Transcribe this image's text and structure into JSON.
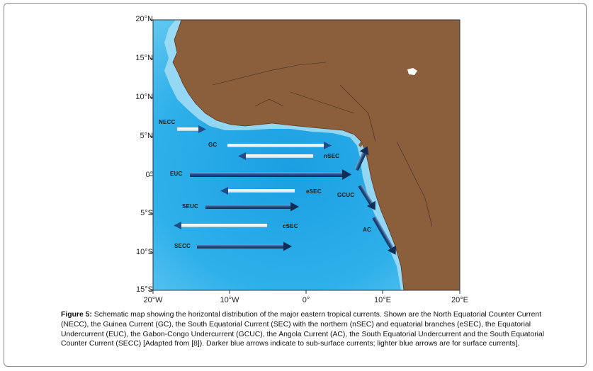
{
  "map": {
    "lat_ticks": [
      "20°N",
      "15°N",
      "10°N",
      "5°N",
      "0°",
      "5°S",
      "10°S",
      "15°S"
    ],
    "lon_ticks": [
      "20°W",
      "10°W",
      "0°",
      "10°E",
      "20°E"
    ],
    "colors": {
      "land": "#8b5e3c",
      "ocean_deep": "#1fa7e6",
      "ocean_shelf": "#9fdcf6",
      "subsurface_arrow": "#1f4f86",
      "surface_arrow": "#e8f6fd"
    },
    "currents": [
      {
        "label": "NECC",
        "type": "surface"
      },
      {
        "label": "GC",
        "type": "surface"
      },
      {
        "label": "nSEC",
        "type": "surface"
      },
      {
        "label": "EUC",
        "type": "subsurface"
      },
      {
        "label": "eSEC",
        "type": "surface"
      },
      {
        "label": "GCUC",
        "type": "subsurface"
      },
      {
        "label": "SEUC",
        "type": "subsurface"
      },
      {
        "label": "cSEC",
        "type": "surface"
      },
      {
        "label": "AC",
        "type": "subsurface"
      },
      {
        "label": "SECC",
        "type": "subsurface"
      }
    ]
  },
  "caption": {
    "title": "Figure 5:",
    "text": " Schematic map showing the horizontal distribution of the major eastern tropical currents. Shown are the North Equatorial Counter Current (NECC), the Guinea Current (GC), the South Equatorial Current (SEC) with the northern (nSEC) and equatorial branches (eSEC), the Equatorial Undercurrent (EUC), the Gabon-Congo Undercurrent (GCUC), the Angola Current (AC), the South Equatorial Undercurrent and the South Equatorial Counter Current (SECC) [Adapted from [8]). Darker blue arrows indicate to sub-surface currents; lighter blue arrows are for surface currents]."
  }
}
